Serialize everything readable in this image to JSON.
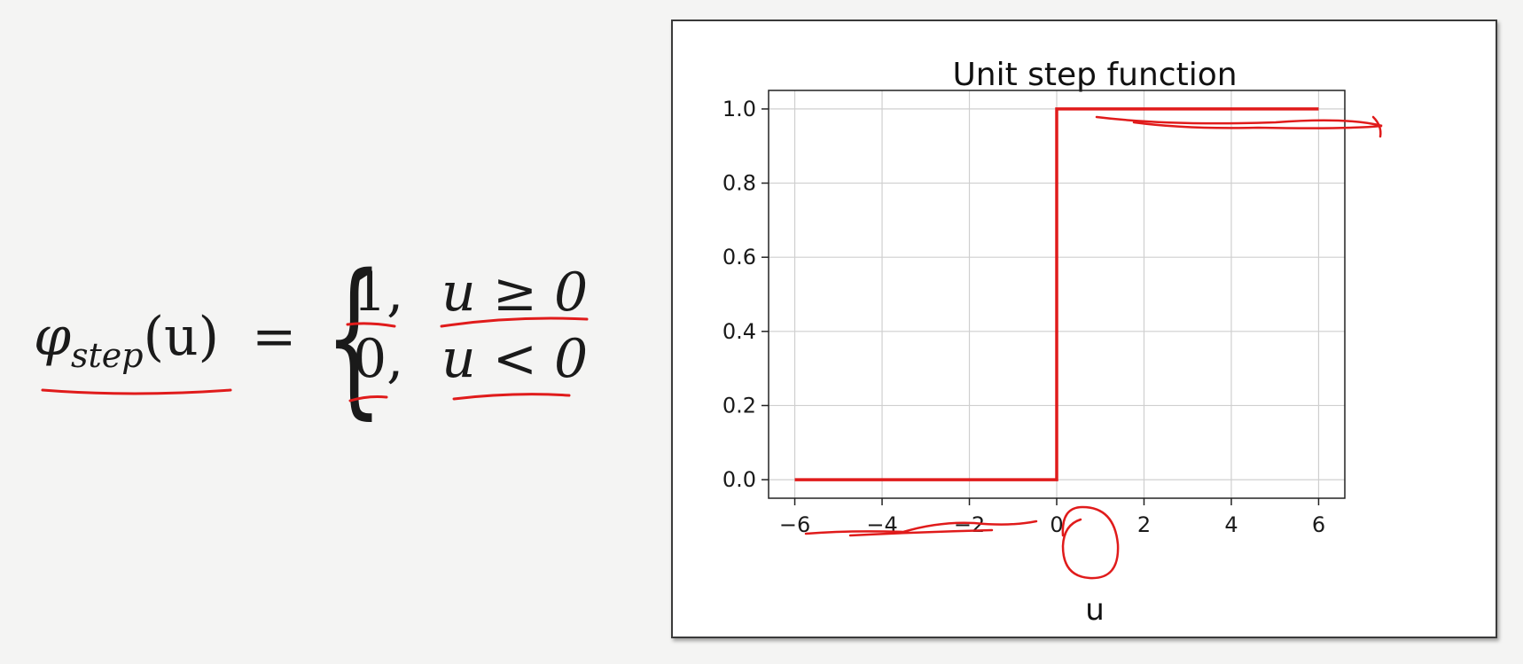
{
  "formula": {
    "lhs_symbol": "φ",
    "lhs_subscript": "step",
    "lhs_arg": "(u)",
    "equals": "=",
    "brace": "{",
    "cases": [
      {
        "value": "1,",
        "condition": "u ≥ 0"
      },
      {
        "value": "0,",
        "condition": "u < 0"
      }
    ]
  },
  "annotation_color": "#e01b1b",
  "chart_data": {
    "type": "line",
    "title": "Unit step function",
    "xlabel": "u",
    "ylabel": "",
    "xlim": [
      -6.6,
      6.6
    ],
    "ylim": [
      -0.05,
      1.05
    ],
    "xticks": [
      -6,
      -4,
      -2,
      0,
      2,
      4,
      6
    ],
    "xtick_labels": [
      "−6",
      "−4",
      "−2",
      "0",
      "2",
      "4",
      "6"
    ],
    "yticks": [
      0.0,
      0.2,
      0.4,
      0.6,
      0.8,
      1.0
    ],
    "ytick_labels": [
      "0.0",
      "0.2",
      "0.4",
      "0.6",
      "0.8",
      "1.0"
    ],
    "grid": true,
    "series": [
      {
        "color": "#e01b1b",
        "x": [
          -6,
          0,
          0,
          6
        ],
        "y": [
          0,
          0,
          1,
          1
        ]
      }
    ]
  }
}
